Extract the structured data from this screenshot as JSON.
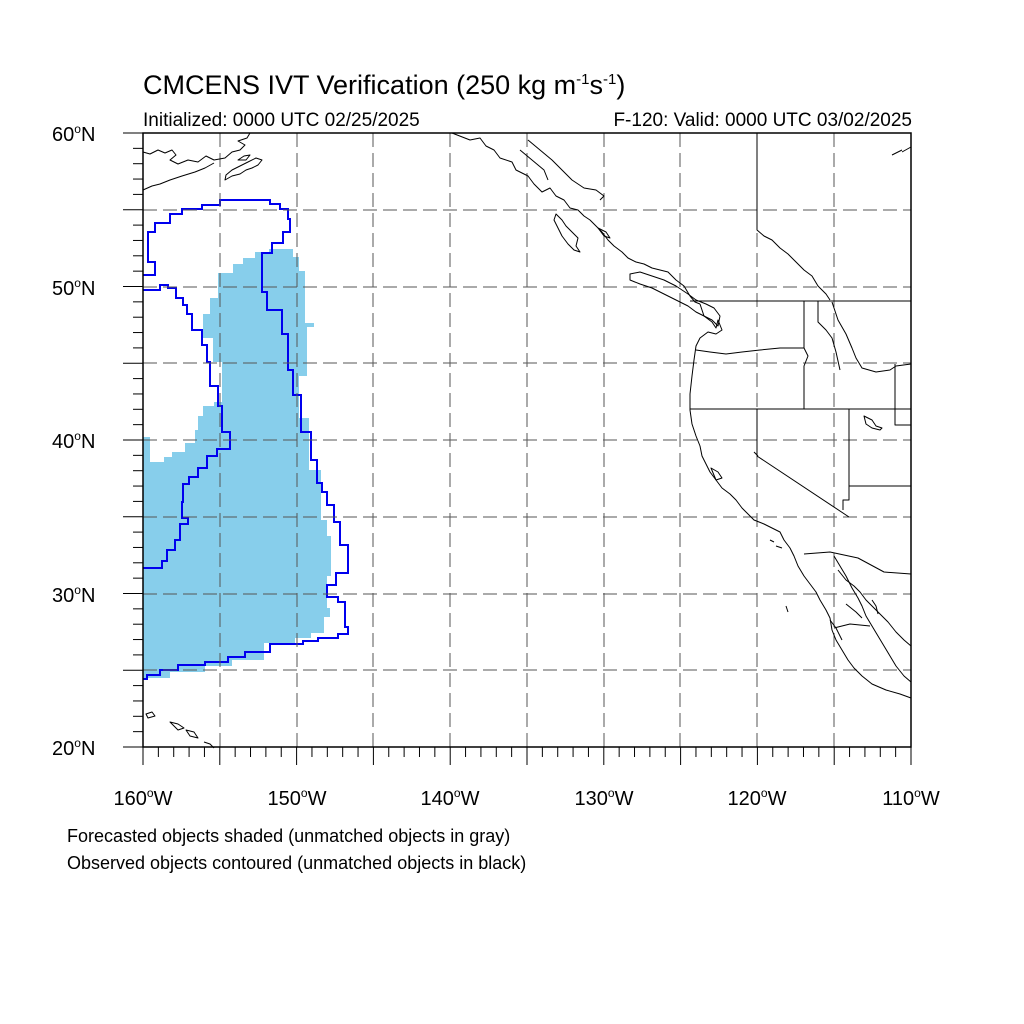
{
  "title": {
    "main": "CMCENS IVT Verification (250 kg m",
    "sup1": "-1",
    "mid": "s",
    "sup2": "-1",
    "end": ")"
  },
  "subtitle_left": "Initialized: 0000 UTC 02/25/2025",
  "subtitle_right": "F-120: Valid: 0000 UTC 03/02/2025",
  "lat_labels": [
    "60",
    "50",
    "40",
    "30",
    "20"
  ],
  "lat_suffix": "N",
  "lon_labels": [
    "160",
    "150",
    "140",
    "130",
    "120",
    "110"
  ],
  "lon_suffix": "W",
  "notes": {
    "forecast": "Forecasted objects shaded (unmatched objects in gray)",
    "observed": "Observed objects contoured (unmatched objects in black)"
  },
  "map": {
    "lon_range": [
      -160,
      -110
    ],
    "lat_range": [
      20,
      60
    ],
    "grid_interval_deg": 5,
    "colors": {
      "forecast_matched": "#87ceeb",
      "observed_matched": "#0000ee",
      "coastline": "#000000",
      "grid": "#555555"
    }
  }
}
